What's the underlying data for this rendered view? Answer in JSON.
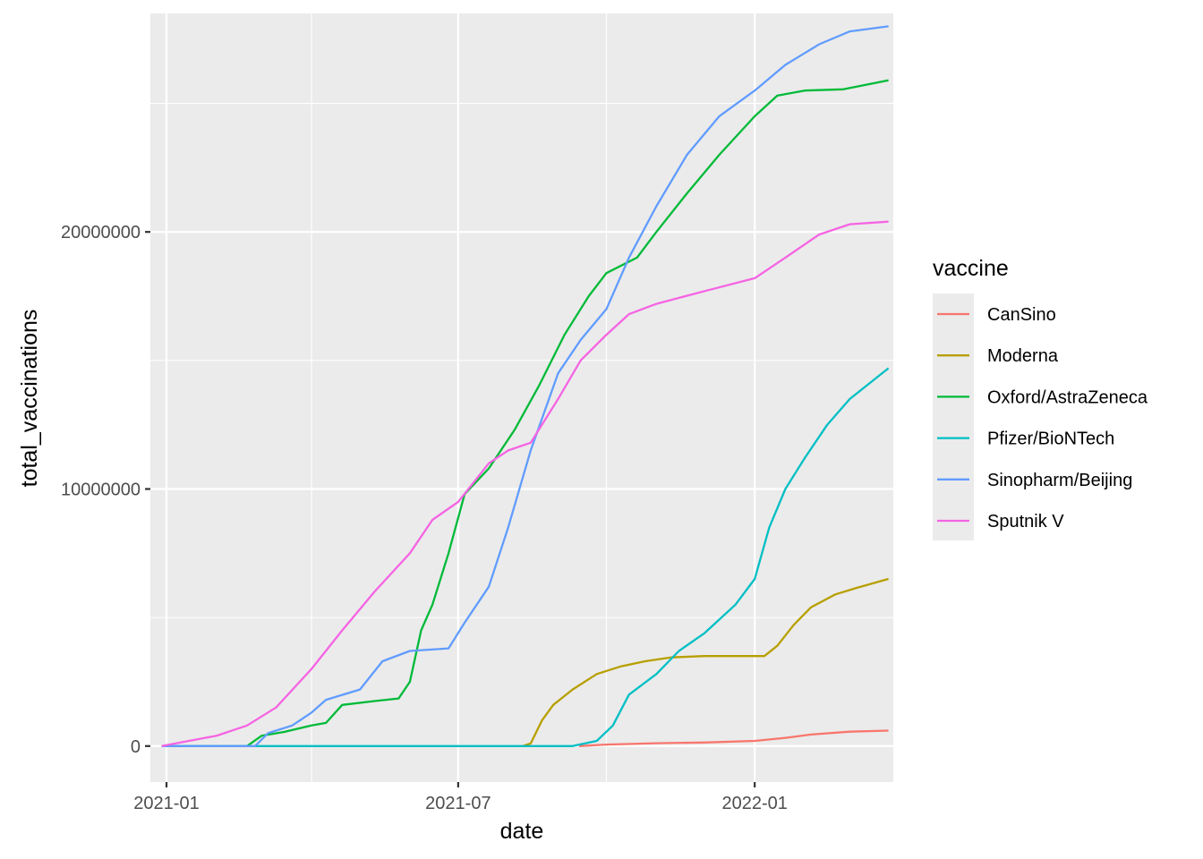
{
  "chart_data": {
    "type": "line",
    "xlabel": "date",
    "ylabel": "total_vaccinations",
    "x_range": [
      "2020-12-22",
      "2022-03-28"
    ],
    "ylim": [
      -1400000,
      28500000
    ],
    "x_ticks": [
      {
        "date": "2021-01-01",
        "label": "2021-01"
      },
      {
        "date": "2021-07-01",
        "label": "2021-07"
      },
      {
        "date": "2022-01-01",
        "label": "2022-01"
      }
    ],
    "x_minor": [
      "2021-04-01",
      "2021-10-01",
      "2022-04-01"
    ],
    "y_ticks": [
      {
        "value": 0,
        "label": "0"
      },
      {
        "value": 10000000,
        "label": "10000000"
      },
      {
        "value": 20000000,
        "label": "20000000"
      }
    ],
    "y_minor": [
      5000000,
      15000000,
      25000000
    ],
    "grid": true,
    "legend": {
      "title": "vaccine",
      "position": "right"
    },
    "series": [
      {
        "name": "CanSino",
        "color": "#F8766D",
        "points": [
          [
            "2021-09-14",
            0
          ],
          [
            "2021-10-01",
            60000
          ],
          [
            "2021-11-01",
            110000
          ],
          [
            "2021-12-01",
            140000
          ],
          [
            "2022-01-01",
            200000
          ],
          [
            "2022-01-20",
            320000
          ],
          [
            "2022-02-05",
            450000
          ],
          [
            "2022-03-01",
            560000
          ],
          [
            "2022-03-25",
            600000
          ]
        ]
      },
      {
        "name": "Moderna",
        "color": "#B79F00",
        "points": [
          [
            "2021-08-10",
            0
          ],
          [
            "2021-08-15",
            100000
          ],
          [
            "2021-08-22",
            1000000
          ],
          [
            "2021-08-29",
            1600000
          ],
          [
            "2021-09-10",
            2200000
          ],
          [
            "2021-09-25",
            2800000
          ],
          [
            "2021-10-10",
            3100000
          ],
          [
            "2021-10-25",
            3300000
          ],
          [
            "2021-11-10",
            3450000
          ],
          [
            "2021-12-01",
            3500000
          ],
          [
            "2022-01-07",
            3500000
          ],
          [
            "2022-01-15",
            3900000
          ],
          [
            "2022-01-25",
            4700000
          ],
          [
            "2022-02-05",
            5400000
          ],
          [
            "2022-02-20",
            5900000
          ],
          [
            "2022-03-05",
            6150000
          ],
          [
            "2022-03-25",
            6500000
          ]
        ]
      },
      {
        "name": "Oxford/AstraZeneca",
        "color": "#00BA38",
        "points": [
          [
            "2020-12-29",
            0
          ],
          [
            "2021-02-20",
            0
          ],
          [
            "2021-03-01",
            400000
          ],
          [
            "2021-03-15",
            550000
          ],
          [
            "2021-04-01",
            800000
          ],
          [
            "2021-04-10",
            900000
          ],
          [
            "2021-04-20",
            1600000
          ],
          [
            "2021-05-10",
            1750000
          ],
          [
            "2021-05-25",
            1850000
          ],
          [
            "2021-06-01",
            2500000
          ],
          [
            "2021-06-08",
            4500000
          ],
          [
            "2021-06-15",
            5500000
          ],
          [
            "2021-06-25",
            7500000
          ],
          [
            "2021-07-05",
            9800000
          ],
          [
            "2021-07-20",
            10800000
          ],
          [
            "2021-08-05",
            12300000
          ],
          [
            "2021-08-20",
            14000000
          ],
          [
            "2021-09-05",
            16000000
          ],
          [
            "2021-09-20",
            17500000
          ],
          [
            "2021-10-01",
            18400000
          ],
          [
            "2021-10-20",
            19000000
          ],
          [
            "2021-11-01",
            20000000
          ],
          [
            "2021-11-20",
            21500000
          ],
          [
            "2021-12-10",
            23000000
          ],
          [
            "2022-01-01",
            24500000
          ],
          [
            "2022-01-15",
            25300000
          ],
          [
            "2022-02-01",
            25500000
          ],
          [
            "2022-02-25",
            25550000
          ],
          [
            "2022-03-25",
            25900000
          ]
        ]
      },
      {
        "name": "Pfizer/BioNTech",
        "color": "#00BFC4",
        "points": [
          [
            "2020-12-29",
            0
          ],
          [
            "2021-09-10",
            0
          ],
          [
            "2021-09-25",
            200000
          ],
          [
            "2021-10-05",
            800000
          ],
          [
            "2021-10-15",
            2000000
          ],
          [
            "2021-11-01",
            2800000
          ],
          [
            "2021-11-15",
            3700000
          ],
          [
            "2021-12-01",
            4400000
          ],
          [
            "2021-12-20",
            5500000
          ],
          [
            "2022-01-01",
            6500000
          ],
          [
            "2022-01-10",
            8500000
          ],
          [
            "2022-01-20",
            10000000
          ],
          [
            "2022-02-01",
            11200000
          ],
          [
            "2022-02-15",
            12500000
          ],
          [
            "2022-03-01",
            13500000
          ],
          [
            "2022-03-25",
            14700000
          ]
        ]
      },
      {
        "name": "Sinopharm/Beijing",
        "color": "#619CFF",
        "points": [
          [
            "2020-12-29",
            0
          ],
          [
            "2021-02-25",
            0
          ],
          [
            "2021-03-05",
            500000
          ],
          [
            "2021-03-20",
            800000
          ],
          [
            "2021-04-01",
            1300000
          ],
          [
            "2021-04-10",
            1800000
          ],
          [
            "2021-05-01",
            2200000
          ],
          [
            "2021-05-15",
            3300000
          ],
          [
            "2021-06-01",
            3700000
          ],
          [
            "2021-06-25",
            3800000
          ],
          [
            "2021-07-05",
            4800000
          ],
          [
            "2021-07-20",
            6200000
          ],
          [
            "2021-08-01",
            8500000
          ],
          [
            "2021-08-15",
            11500000
          ],
          [
            "2021-09-01",
            14500000
          ],
          [
            "2021-09-15",
            15800000
          ],
          [
            "2021-10-01",
            17000000
          ],
          [
            "2021-10-15",
            19000000
          ],
          [
            "2021-11-01",
            21000000
          ],
          [
            "2021-11-20",
            23000000
          ],
          [
            "2021-12-10",
            24500000
          ],
          [
            "2022-01-01",
            25500000
          ],
          [
            "2022-01-20",
            26500000
          ],
          [
            "2022-02-10",
            27300000
          ],
          [
            "2022-03-01",
            27800000
          ],
          [
            "2022-03-25",
            28000000
          ]
        ]
      },
      {
        "name": "Sputnik V",
        "color": "#F564E3",
        "points": [
          [
            "2020-12-29",
            0
          ],
          [
            "2021-01-15",
            200000
          ],
          [
            "2021-02-01",
            400000
          ],
          [
            "2021-02-20",
            800000
          ],
          [
            "2021-03-10",
            1500000
          ],
          [
            "2021-04-01",
            3000000
          ],
          [
            "2021-04-20",
            4500000
          ],
          [
            "2021-05-10",
            6000000
          ],
          [
            "2021-06-01",
            7500000
          ],
          [
            "2021-06-15",
            8800000
          ],
          [
            "2021-07-01",
            9500000
          ],
          [
            "2021-07-20",
            11000000
          ],
          [
            "2021-08-01",
            11500000
          ],
          [
            "2021-08-15",
            11800000
          ],
          [
            "2021-09-01",
            13500000
          ],
          [
            "2021-09-15",
            15000000
          ],
          [
            "2021-10-01",
            16000000
          ],
          [
            "2021-10-15",
            16800000
          ],
          [
            "2021-11-01",
            17200000
          ],
          [
            "2021-12-01",
            17700000
          ],
          [
            "2022-01-01",
            18200000
          ],
          [
            "2022-01-20",
            19000000
          ],
          [
            "2022-02-10",
            19900000
          ],
          [
            "2022-03-01",
            20300000
          ],
          [
            "2022-03-25",
            20400000
          ]
        ]
      }
    ]
  }
}
